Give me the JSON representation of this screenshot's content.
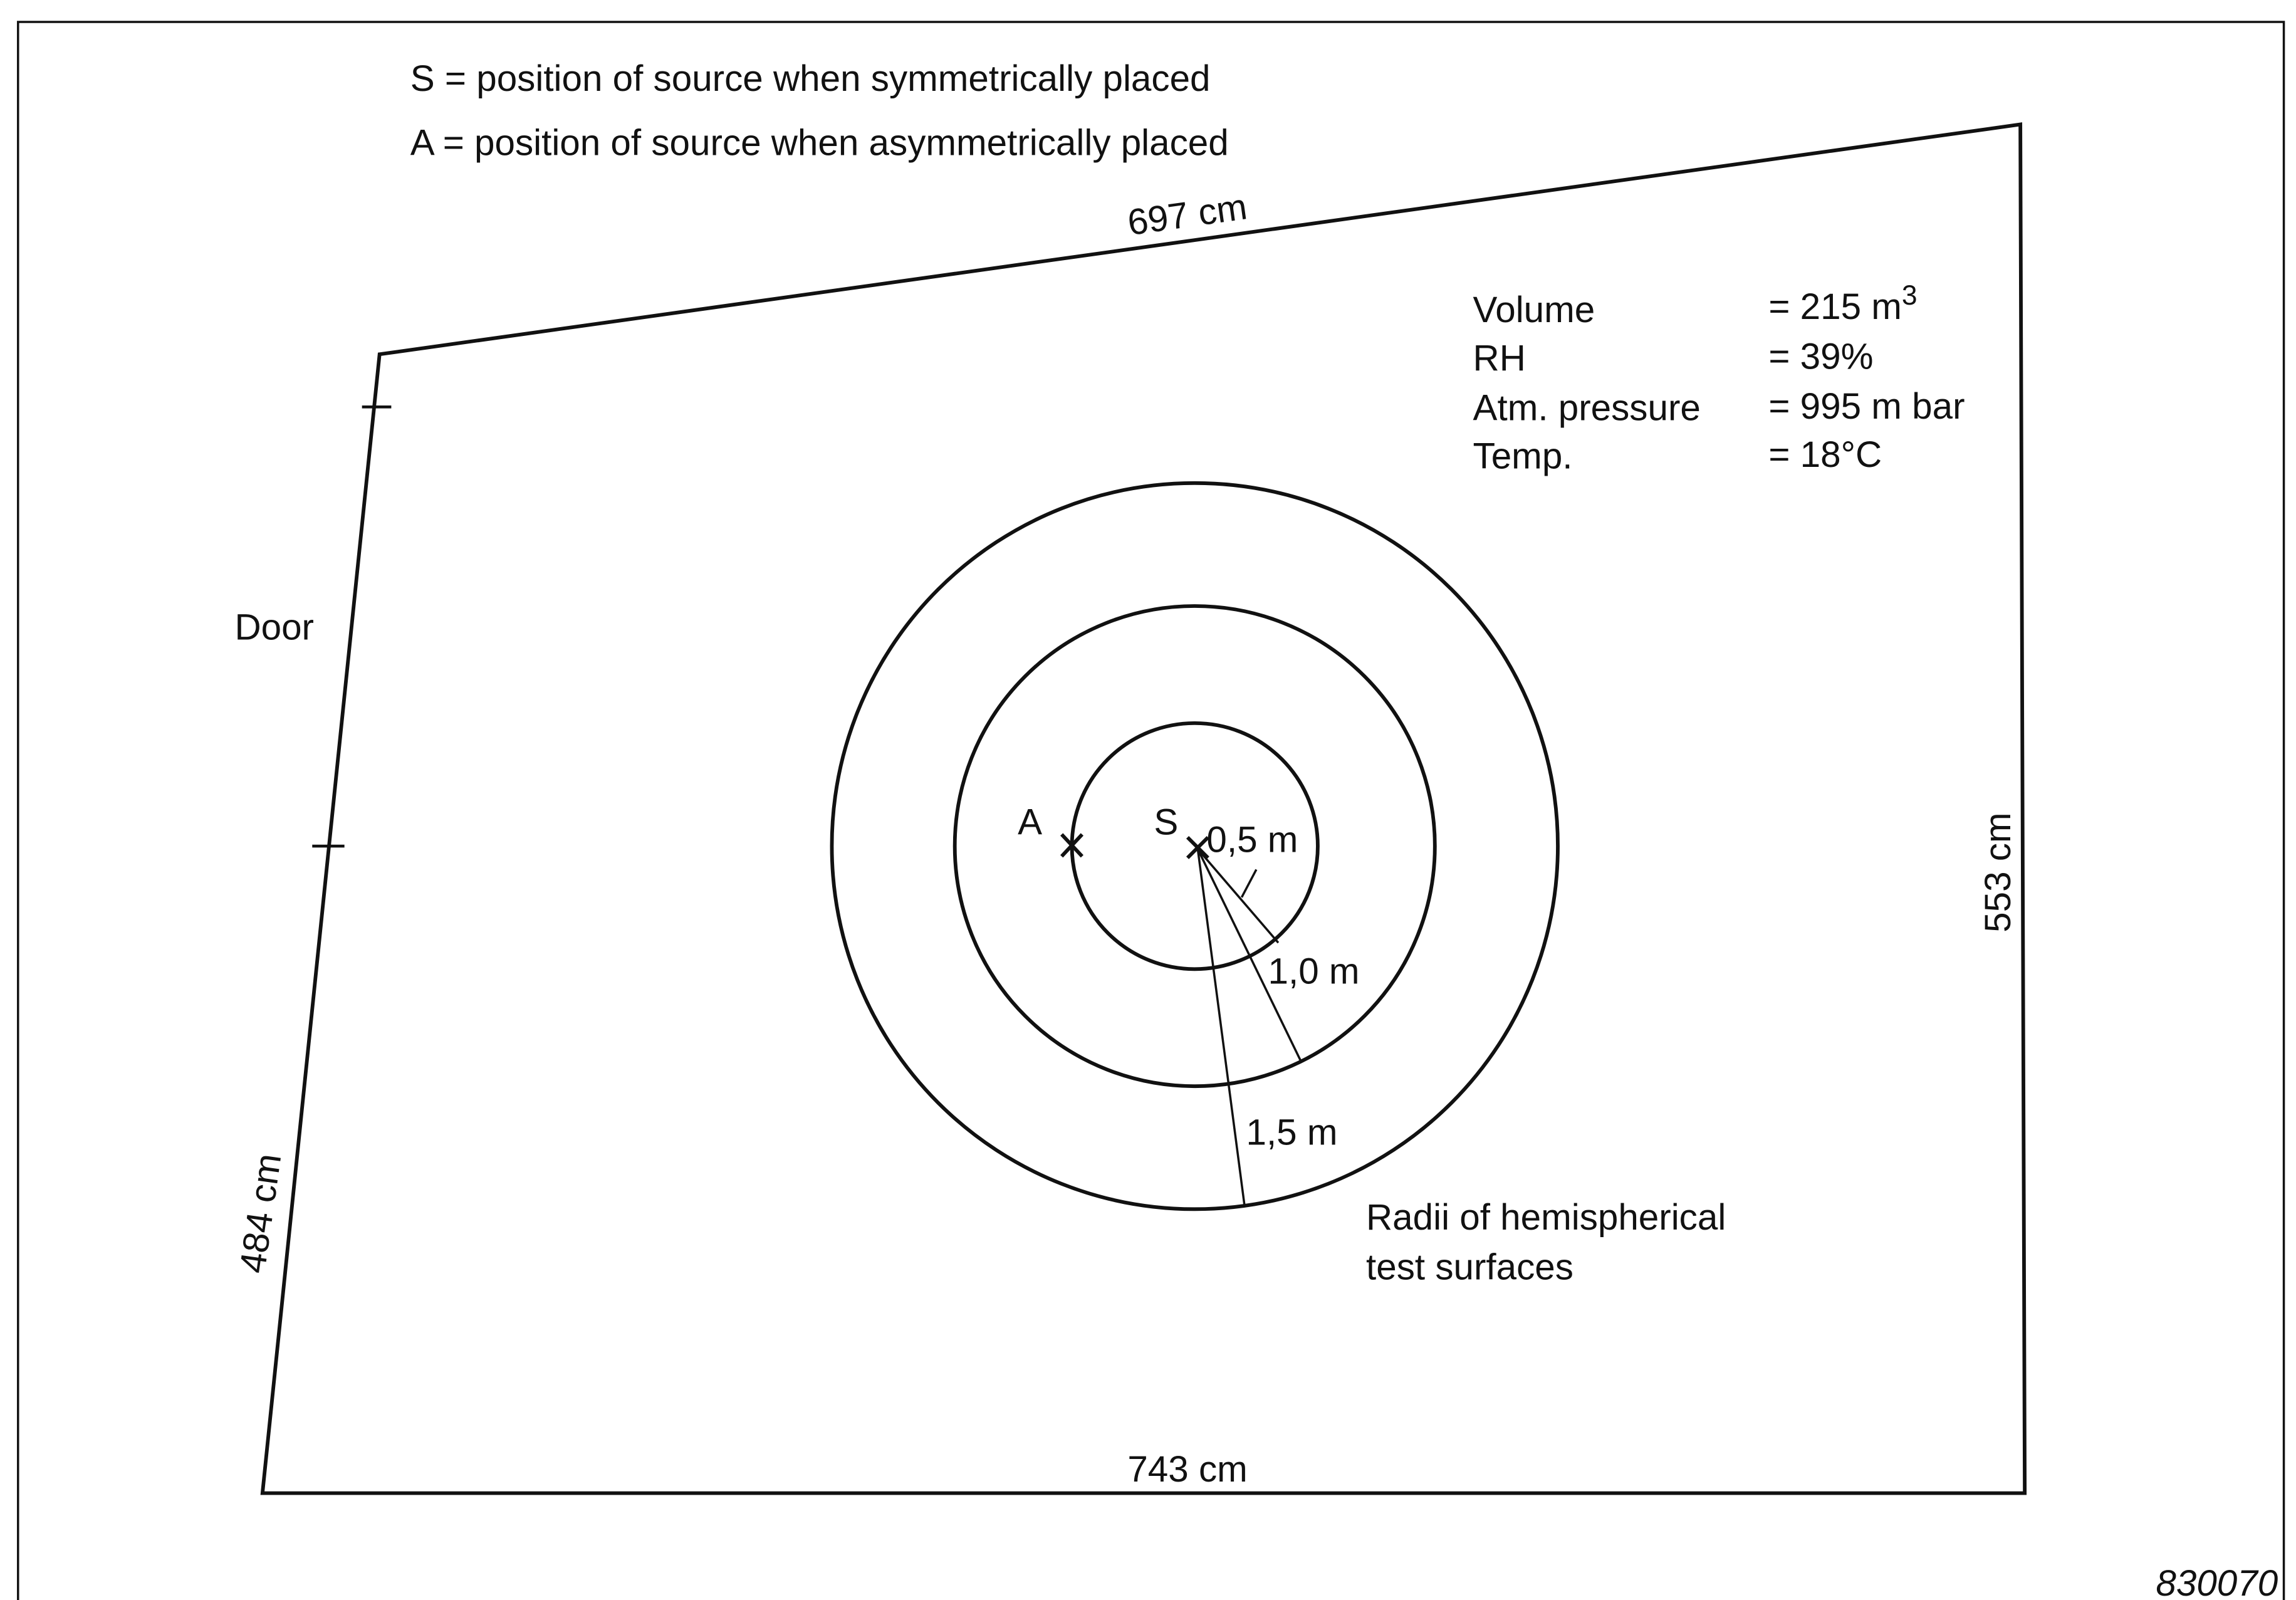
{
  "legend": [
    "S = position of source when symmetrically placed",
    "A = position of source when asymmetrically placed"
  ],
  "walls": {
    "top": "697 cm",
    "right": "553 cm",
    "bottom": "743 cm",
    "left": "484 cm"
  },
  "door": "Door",
  "properties": [
    {
      "label": "Volume",
      "value": "= 215 m",
      "sup": "3"
    },
    {
      "label": "RH",
      "value": "= 39%"
    },
    {
      "label": "Atm. pressure",
      "value": "= 995 m bar"
    },
    {
      "label": "Temp.",
      "value": "= 18°C"
    }
  ],
  "points": {
    "symmetric": "S",
    "asymmetric": "A"
  },
  "radii": [
    "0,5 m",
    "1,0 m",
    "1,5 m"
  ],
  "caption": [
    "Radii of hemispherical",
    "test surfaces"
  ],
  "figure_id": "830070"
}
